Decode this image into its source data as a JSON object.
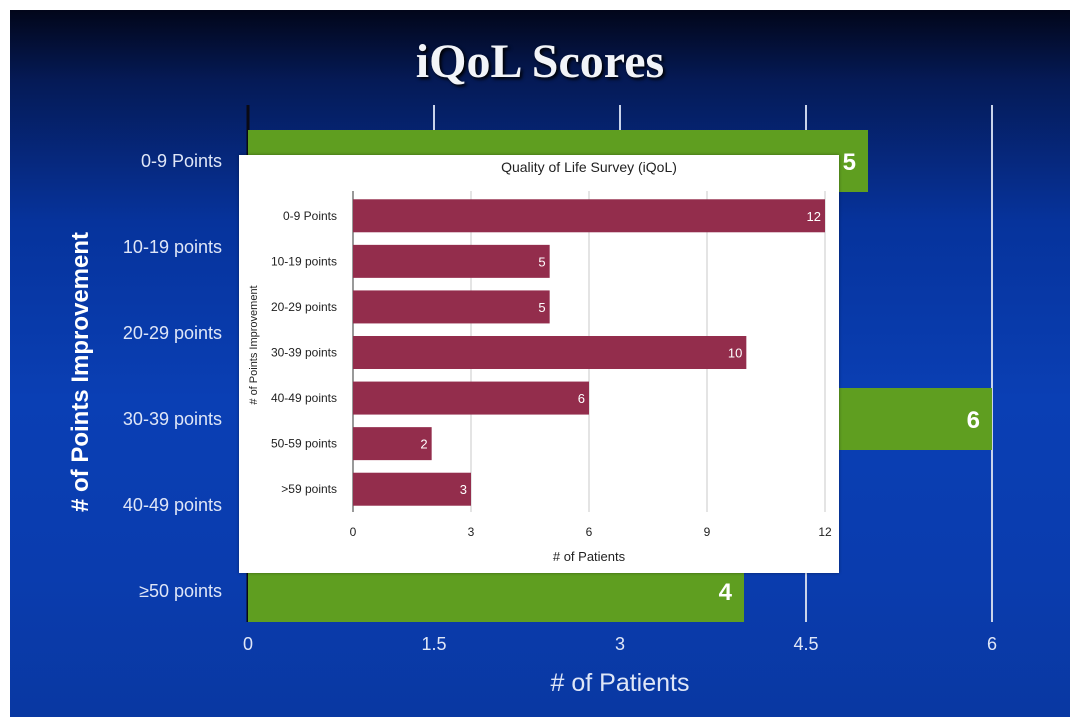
{
  "slide": {
    "title": "iQoL Scores"
  },
  "colors": {
    "back_bar": "#5f9e20",
    "inset_bar": "#932d4c",
    "slide_bg": "#0a3cae"
  },
  "chart_data": [
    {
      "type": "bar",
      "orientation": "horizontal",
      "title": "",
      "xlabel": "# of Patients",
      "ylabel": "# of Points Improvement",
      "categories": [
        "0-9 Points",
        "10-19 points",
        "20-29 points",
        "30-39 points",
        "40-49 points",
        "≥50 points"
      ],
      "values": [
        5,
        null,
        null,
        6,
        null,
        4
      ],
      "value_labels": [
        "5",
        "",
        "",
        "6",
        "",
        "4"
      ],
      "xlim": [
        0,
        6
      ],
      "xticks": [
        "0",
        "1.5",
        "3",
        "4.5",
        "6"
      ],
      "grid": true,
      "note": "partially covered by inset chart"
    },
    {
      "type": "bar",
      "orientation": "horizontal",
      "title": "Quality of Life Survey (iQoL)",
      "xlabel": "# of Patients",
      "ylabel": "# of Points Improvement",
      "categories": [
        "0-9 Points",
        "10-19 points",
        "20-29 points",
        "30-39 points",
        "40-49 points",
        "50-59 points",
        ">59 points"
      ],
      "values": [
        12,
        5,
        5,
        10,
        6,
        2,
        3
      ],
      "xlim": [
        0,
        12
      ],
      "xticks": [
        "0",
        "3",
        "6",
        "9",
        "12"
      ],
      "grid": true
    }
  ]
}
